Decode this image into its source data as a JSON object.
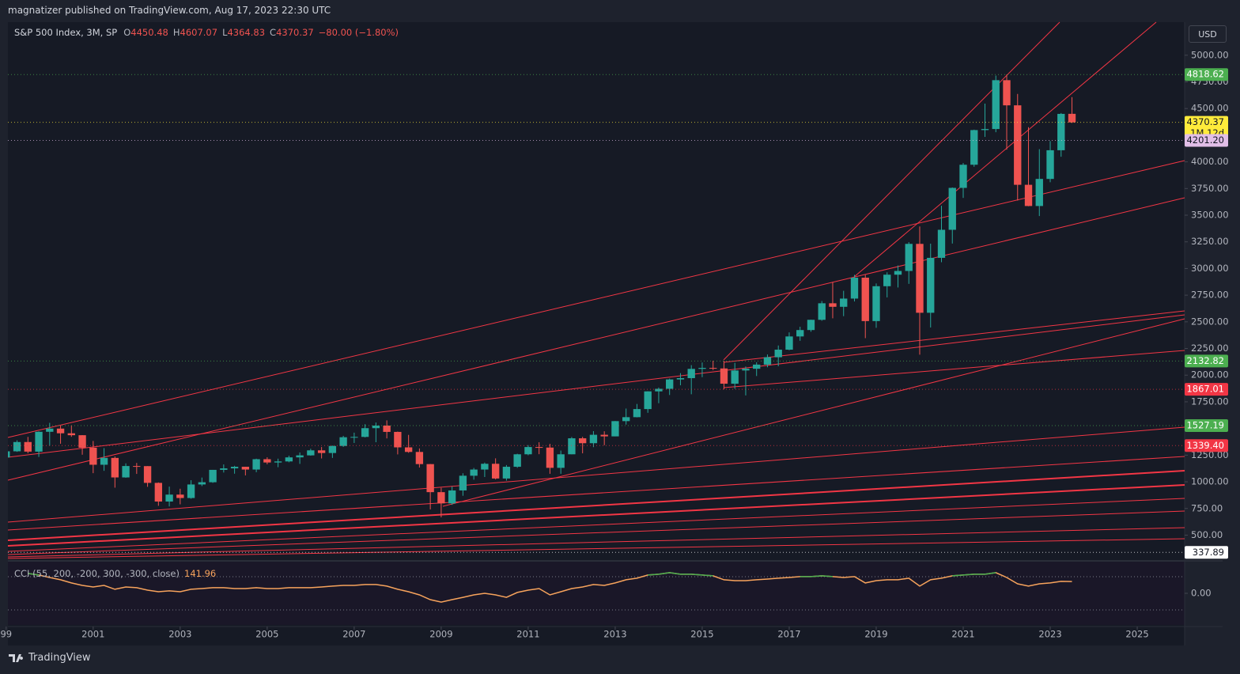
{
  "header": "magnatizer published on TradingView.com, Aug 17, 2023 22:30 UTC",
  "footer": "TradingView",
  "chart_data": {
    "type": "candlestick",
    "title": "S&P 500 Index, 3M, SP",
    "ohlc_labels": [
      "O",
      "H",
      "L",
      "C"
    ],
    "change": "−80.00 (−1.80%)",
    "currency": "USD",
    "countdown": "1M 12d",
    "up_color": "#26a69a",
    "down_color": "#ef5350",
    "x": [
      1999,
      1999.25,
      1999.5,
      1999.75,
      2000,
      2000.25,
      2000.5,
      2000.75,
      2001,
      2001.25,
      2001.5,
      2001.75,
      2002,
      2002.25,
      2002.5,
      2002.75,
      2003,
      2003.25,
      2003.5,
      2003.75,
      2004,
      2004.25,
      2004.5,
      2004.75,
      2005,
      2005.25,
      2005.5,
      2005.75,
      2006,
      2006.25,
      2006.5,
      2006.75,
      2007,
      2007.25,
      2007.5,
      2007.75,
      2008,
      2008.25,
      2008.5,
      2008.75,
      2009,
      2009.25,
      2009.5,
      2009.75,
      2010,
      2010.25,
      2010.5,
      2010.75,
      2011,
      2011.25,
      2011.5,
      2011.75,
      2012,
      2012.25,
      2012.5,
      2012.75,
      2013,
      2013.25,
      2013.5,
      2013.75,
      2014,
      2014.25,
      2014.5,
      2014.75,
      2015,
      2015.25,
      2015.5,
      2015.75,
      2016,
      2016.25,
      2016.5,
      2016.75,
      2017,
      2017.25,
      2017.5,
      2017.75,
      2018,
      2018.25,
      2018.5,
      2018.75,
      2019,
      2019.25,
      2019.5,
      2019.75,
      2020,
      2020.25,
      2020.5,
      2020.75,
      2021,
      2021.25,
      2021.5,
      2021.75,
      2022,
      2022.25,
      2022.5,
      2022.75,
      2023,
      2023.25,
      2023.5
    ],
    "open": [
      1229,
      1286,
      1373,
      1283,
      1469,
      1499,
      1455,
      1437,
      1320,
      1160,
      1224,
      1041,
      1148,
      1147,
      990,
      815,
      880,
      848,
      975,
      996,
      1112,
      1126,
      1141,
      1115,
      1212,
      1181,
      1191,
      1229,
      1248,
      1295,
      1270,
      1336,
      1418,
      1421,
      1503,
      1527,
      1468,
      1323,
      1280,
      1166,
      903,
      798,
      919,
      1057,
      1115,
      1169,
      1031,
      1141,
      1258,
      1326,
      1321,
      1131,
      1258,
      1408,
      1362,
      1441,
      1426,
      1569,
      1606,
      1682,
      1848,
      1872,
      1960,
      1972,
      2059,
      2068,
      2063,
      1920,
      2044,
      2060,
      2099,
      2168,
      2239,
      2363,
      2423,
      2519,
      2674,
      2641,
      2718,
      2914,
      2507,
      2834,
      2942,
      2977,
      3231,
      2585,
      3100,
      3363,
      3756,
      3973,
      4298,
      4308,
      4766,
      4530,
      3785,
      3586,
      3840,
      4109,
      4450.48
    ],
    "high": [
      1316,
      1389,
      1421,
      1473,
      1553,
      1527,
      1530,
      1438,
      1383,
      1316,
      1238,
      1173,
      1177,
      1147,
      994,
      955,
      935,
      1015,
      1040,
      1112,
      1163,
      1150,
      1141,
      1217,
      1230,
      1217,
      1245,
      1275,
      1310,
      1326,
      1340,
      1431,
      1461,
      1540,
      1556,
      1576,
      1471,
      1440,
      1313,
      1167,
      944,
      956,
      1080,
      1130,
      1180,
      1220,
      1157,
      1263,
      1344,
      1371,
      1356,
      1293,
      1420,
      1422,
      1475,
      1474,
      1570,
      1687,
      1730,
      1849,
      1884,
      1968,
      2019,
      2094,
      2119,
      2135,
      2133,
      2116,
      2081,
      2121,
      2194,
      2278,
      2401,
      2454,
      2520,
      2695,
      2873,
      2791,
      2941,
      2940,
      2860,
      2964,
      3028,
      3247,
      3394,
      3233,
      3588,
      3760,
      3989,
      4302,
      4546,
      4809,
      4818.62,
      4637,
      4325,
      4119,
      4195,
      4458,
      4607.07
    ],
    "low": [
      1205,
      1281,
      1268,
      1233,
      1339,
      1357,
      1422,
      1254,
      1081,
      1103,
      945,
      1038,
      1074,
      953,
      775,
      769,
      789,
      841,
      960,
      990,
      1087,
      1076,
      1060,
      1090,
      1164,
      1137,
      1183,
      1168,
      1245,
      1219,
      1224,
      1327,
      1364,
      1416,
      1371,
      1407,
      1257,
      1272,
      1134,
      741,
      667,
      784,
      869,
      1020,
      1045,
      1023,
      1011,
      1131,
      1249,
      1259,
      1075,
      1075,
      1258,
      1267,
      1325,
      1343,
      1426,
      1536,
      1604,
      1647,
      1737,
      1814,
      1905,
      1821,
      1981,
      2048,
      1867,
      1872,
      1810,
      1992,
      2074,
      2084,
      2234,
      2322,
      2407,
      2510,
      2533,
      2553,
      2691,
      2347,
      2444,
      2729,
      2822,
      2856,
      2192,
      2447,
      3059,
      3234,
      3662,
      3954,
      4234,
      4278,
      4115,
      3637,
      3584,
      3492,
      3809,
      4048,
      4364.83
    ],
    "close": [
      1286,
      1373,
      1283,
      1469,
      1499,
      1455,
      1437,
      1320,
      1160,
      1224,
      1041,
      1148,
      1147,
      990,
      815,
      880,
      848,
      975,
      996,
      1112,
      1126,
      1141,
      1115,
      1212,
      1181,
      1191,
      1229,
      1248,
      1295,
      1270,
      1336,
      1418,
      1421,
      1503,
      1527,
      1468,
      1323,
      1280,
      1166,
      903,
      798,
      919,
      1057,
      1115,
      1169,
      1031,
      1141,
      1258,
      1326,
      1321,
      1131,
      1258,
      1408,
      1362,
      1441,
      1426,
      1569,
      1606,
      1682,
      1848,
      1872,
      1960,
      1972,
      2059,
      2068,
      2063,
      1920,
      2044,
      2060,
      2099,
      2168,
      2239,
      2363,
      2423,
      2519,
      2674,
      2641,
      2718,
      2914,
      2507,
      2834,
      2942,
      2977,
      3231,
      2585,
      3100,
      3363,
      3756,
      3973,
      4298,
      4308,
      4766,
      4530,
      3785,
      3586,
      3840,
      4109,
      4450,
      4370.37
    ],
    "xlim": [
      1999.04,
      2026.09
    ],
    "xticks": [
      {
        "value": 1999,
        "label": "99"
      },
      2001,
      2003,
      2005,
      2007,
      2009,
      2011,
      2013,
      2015,
      2017,
      2019,
      2021,
      2023,
      2025
    ],
    "ylim": [
      266,
      5310
    ],
    "yticks": [
      {
        "value": 500,
        "label": "500.00"
      },
      {
        "value": 750,
        "label": "750.00"
      },
      {
        "value": 1000,
        "label": "1000.00"
      },
      {
        "value": 1250,
        "label": "1250.00"
      },
      {
        "value": 1750,
        "label": "1750.00"
      },
      {
        "value": 2000,
        "label": "2000.00"
      },
      {
        "value": 2250,
        "label": "2250.00"
      },
      {
        "value": 2500,
        "label": "2500.00"
      },
      {
        "value": 2750,
        "label": "2750.00"
      },
      {
        "value": 3000,
        "label": "3000.00"
      },
      {
        "value": 3250,
        "label": "3250.00"
      },
      {
        "value": 3500,
        "label": "3500.00"
      },
      {
        "value": 3750,
        "label": "3750.00"
      },
      {
        "value": 4000,
        "label": "4000.00"
      },
      {
        "value": 4500,
        "label": "4500.00"
      },
      {
        "value": 4750,
        "label": "4750.00"
      },
      {
        "value": 5000,
        "label": "5000.00"
      }
    ],
    "price_levels": [
      {
        "value": 4818.62,
        "label": "4818.62",
        "color": "#4caf50",
        "text_color": "#ffffff"
      },
      {
        "value": 4370.37,
        "label": "4370.37",
        "color": "#ffeb3b",
        "text_color": "#131722"
      },
      {
        "value": 4201.2,
        "label": "4201.20",
        "color": "#e1bee7",
        "text_color": "#131722"
      },
      {
        "value": 2132.82,
        "label": "2132.82",
        "color": "#4caf50",
        "text_color": "#ffffff"
      },
      {
        "value": 1867.01,
        "label": "1867.01",
        "color": "#f23645",
        "text_color": "#ffffff"
      },
      {
        "value": 1527.19,
        "label": "1527.19",
        "color": "#4caf50",
        "text_color": "#ffffff"
      },
      {
        "value": 1339.4,
        "label": "1339.40",
        "color": "#f23645",
        "text_color": "#ffffff"
      },
      {
        "value": 337.89,
        "label": "337.89",
        "color": "#ffffff",
        "text_color": "#131722"
      }
    ],
    "indicator": {
      "type": "line",
      "name": "CCI (55, 200, -200, 300, -300, close)",
      "color": "#f7a35c",
      "over_color": "#4caf50",
      "levels": [
        200,
        -200
      ],
      "ylim": [
        -380,
        380
      ],
      "yticks": [
        {
          "value": 0,
          "label": "0.00"
        }
      ],
      "values": [
        null,
        null,
        238,
        219,
        190,
        162,
        124,
        95,
        76,
        95,
        48,
        76,
        67,
        38,
        19,
        29,
        19,
        48,
        57,
        67,
        67,
        57,
        57,
        67,
        57,
        57,
        67,
        67,
        67,
        76,
        86,
        95,
        95,
        105,
        105,
        86,
        48,
        19,
        -19,
        -76,
        -105,
        -76,
        -48,
        -19,
        0,
        -19,
        -48,
        10,
        38,
        57,
        -19,
        19,
        57,
        76,
        105,
        95,
        124,
        162,
        181,
        219,
        229,
        248,
        229,
        229,
        219,
        210,
        162,
        152,
        152,
        162,
        171,
        181,
        190,
        200,
        200,
        210,
        200,
        190,
        200,
        124,
        152,
        162,
        162,
        181,
        86,
        162,
        181,
        210,
        219,
        229,
        229,
        248,
        190,
        114,
        86,
        114,
        124,
        143,
        141.96
      ]
    }
  }
}
